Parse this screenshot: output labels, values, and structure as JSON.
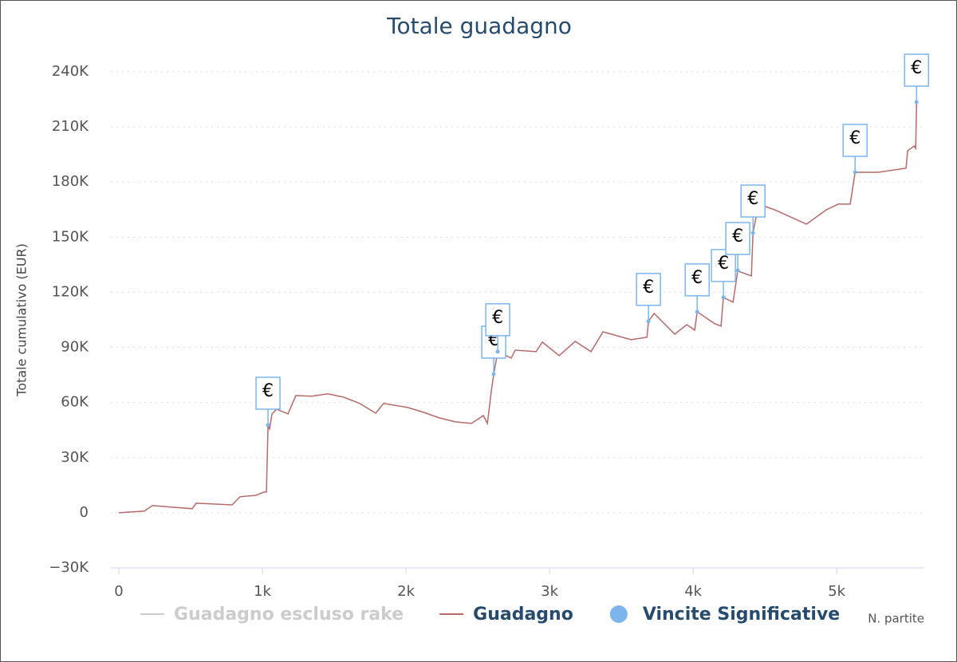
{
  "chart_data": {
    "type": "line",
    "title": "Totale guadagno",
    "y_label": "Totale cumulativo (EUR)",
    "x_label": "N. partite",
    "xlim": [
      0,
      5610
    ],
    "ylim": [
      -30000,
      240000
    ],
    "xticks": [
      0,
      {
        "value": 1000,
        "label": "1k"
      },
      {
        "value": 2000,
        "label": "2k"
      },
      {
        "value": 3000,
        "label": "3k"
      },
      {
        "value": 4000,
        "label": "4k"
      },
      {
        "value": 5000,
        "label": "5k"
      }
    ],
    "yticks": [
      {
        "value": -30000,
        "label": "−30K"
      },
      0,
      {
        "value": 30000,
        "label": "30K"
      },
      {
        "value": 60000,
        "label": "60K"
      },
      {
        "value": 90000,
        "label": "90K"
      },
      {
        "value": 120000,
        "label": "120K"
      },
      {
        "value": 150000,
        "label": "150K"
      },
      {
        "value": 180000,
        "label": "180K"
      },
      {
        "value": 210000,
        "label": "210K"
      },
      {
        "value": 240000,
        "label": "240K"
      }
    ],
    "grid": true,
    "flag_label": "€",
    "series": [
      {
        "name": "Guadagno escluso rake",
        "color": "#cccccc",
        "visible": false
      },
      {
        "name": "Guadagno",
        "color": "#b56a6a",
        "x": [
          0,
          178,
          233,
          511,
          539,
          789,
          844,
          956,
          1011,
          1028,
          1039,
          1050,
          1067,
          1100,
          1178,
          1233,
          1344,
          1456,
          1567,
          1678,
          1789,
          1844,
          2011,
          2122,
          2233,
          2344,
          2456,
          2539,
          2567,
          2594,
          2611,
          2639,
          2733,
          2761,
          2906,
          2950,
          3067,
          3178,
          3289,
          3372,
          3567,
          3678,
          3689,
          3728,
          3789,
          3872,
          3956,
          4011,
          4028,
          4150,
          4194,
          4211,
          4278,
          4311,
          4328,
          4406,
          4417,
          4456,
          4567,
          4789,
          4928,
          5011,
          5094,
          5128,
          5183,
          5289,
          5483,
          5494,
          5539,
          5550,
          5556
        ],
        "values": [
          0,
          900,
          3900,
          2200,
          5200,
          4300,
          8700,
          9500,
          11300,
          11300,
          47700,
          45600,
          53800,
          56400,
          53800,
          63800,
          63400,
          64700,
          62900,
          59500,
          54200,
          59500,
          57300,
          54700,
          51600,
          49500,
          48600,
          52900,
          48600,
          66000,
          75500,
          87700,
          84200,
          88500,
          87700,
          92900,
          85500,
          93300,
          87700,
          98500,
          94200,
          95500,
          104200,
          108500,
          103700,
          97200,
          102400,
          99400,
          109400,
          102900,
          101600,
          117200,
          114600,
          131900,
          131100,
          128900,
          152300,
          168000,
          164900,
          157100,
          164900,
          168000,
          168000,
          185300,
          185300,
          185300,
          187500,
          197000,
          199600,
          198300,
          223500
        ]
      },
      {
        "name": "Vincite Significative",
        "color": "#7cb5ec",
        "type": "flags",
        "x": [
          1039,
          2611,
          2639,
          3689,
          4028,
          4211,
          4311,
          4417,
          5128,
          5556
        ],
        "values": [
          47700,
          75500,
          87700,
          104200,
          109400,
          117200,
          131900,
          152300,
          185300,
          223500
        ]
      }
    ]
  }
}
